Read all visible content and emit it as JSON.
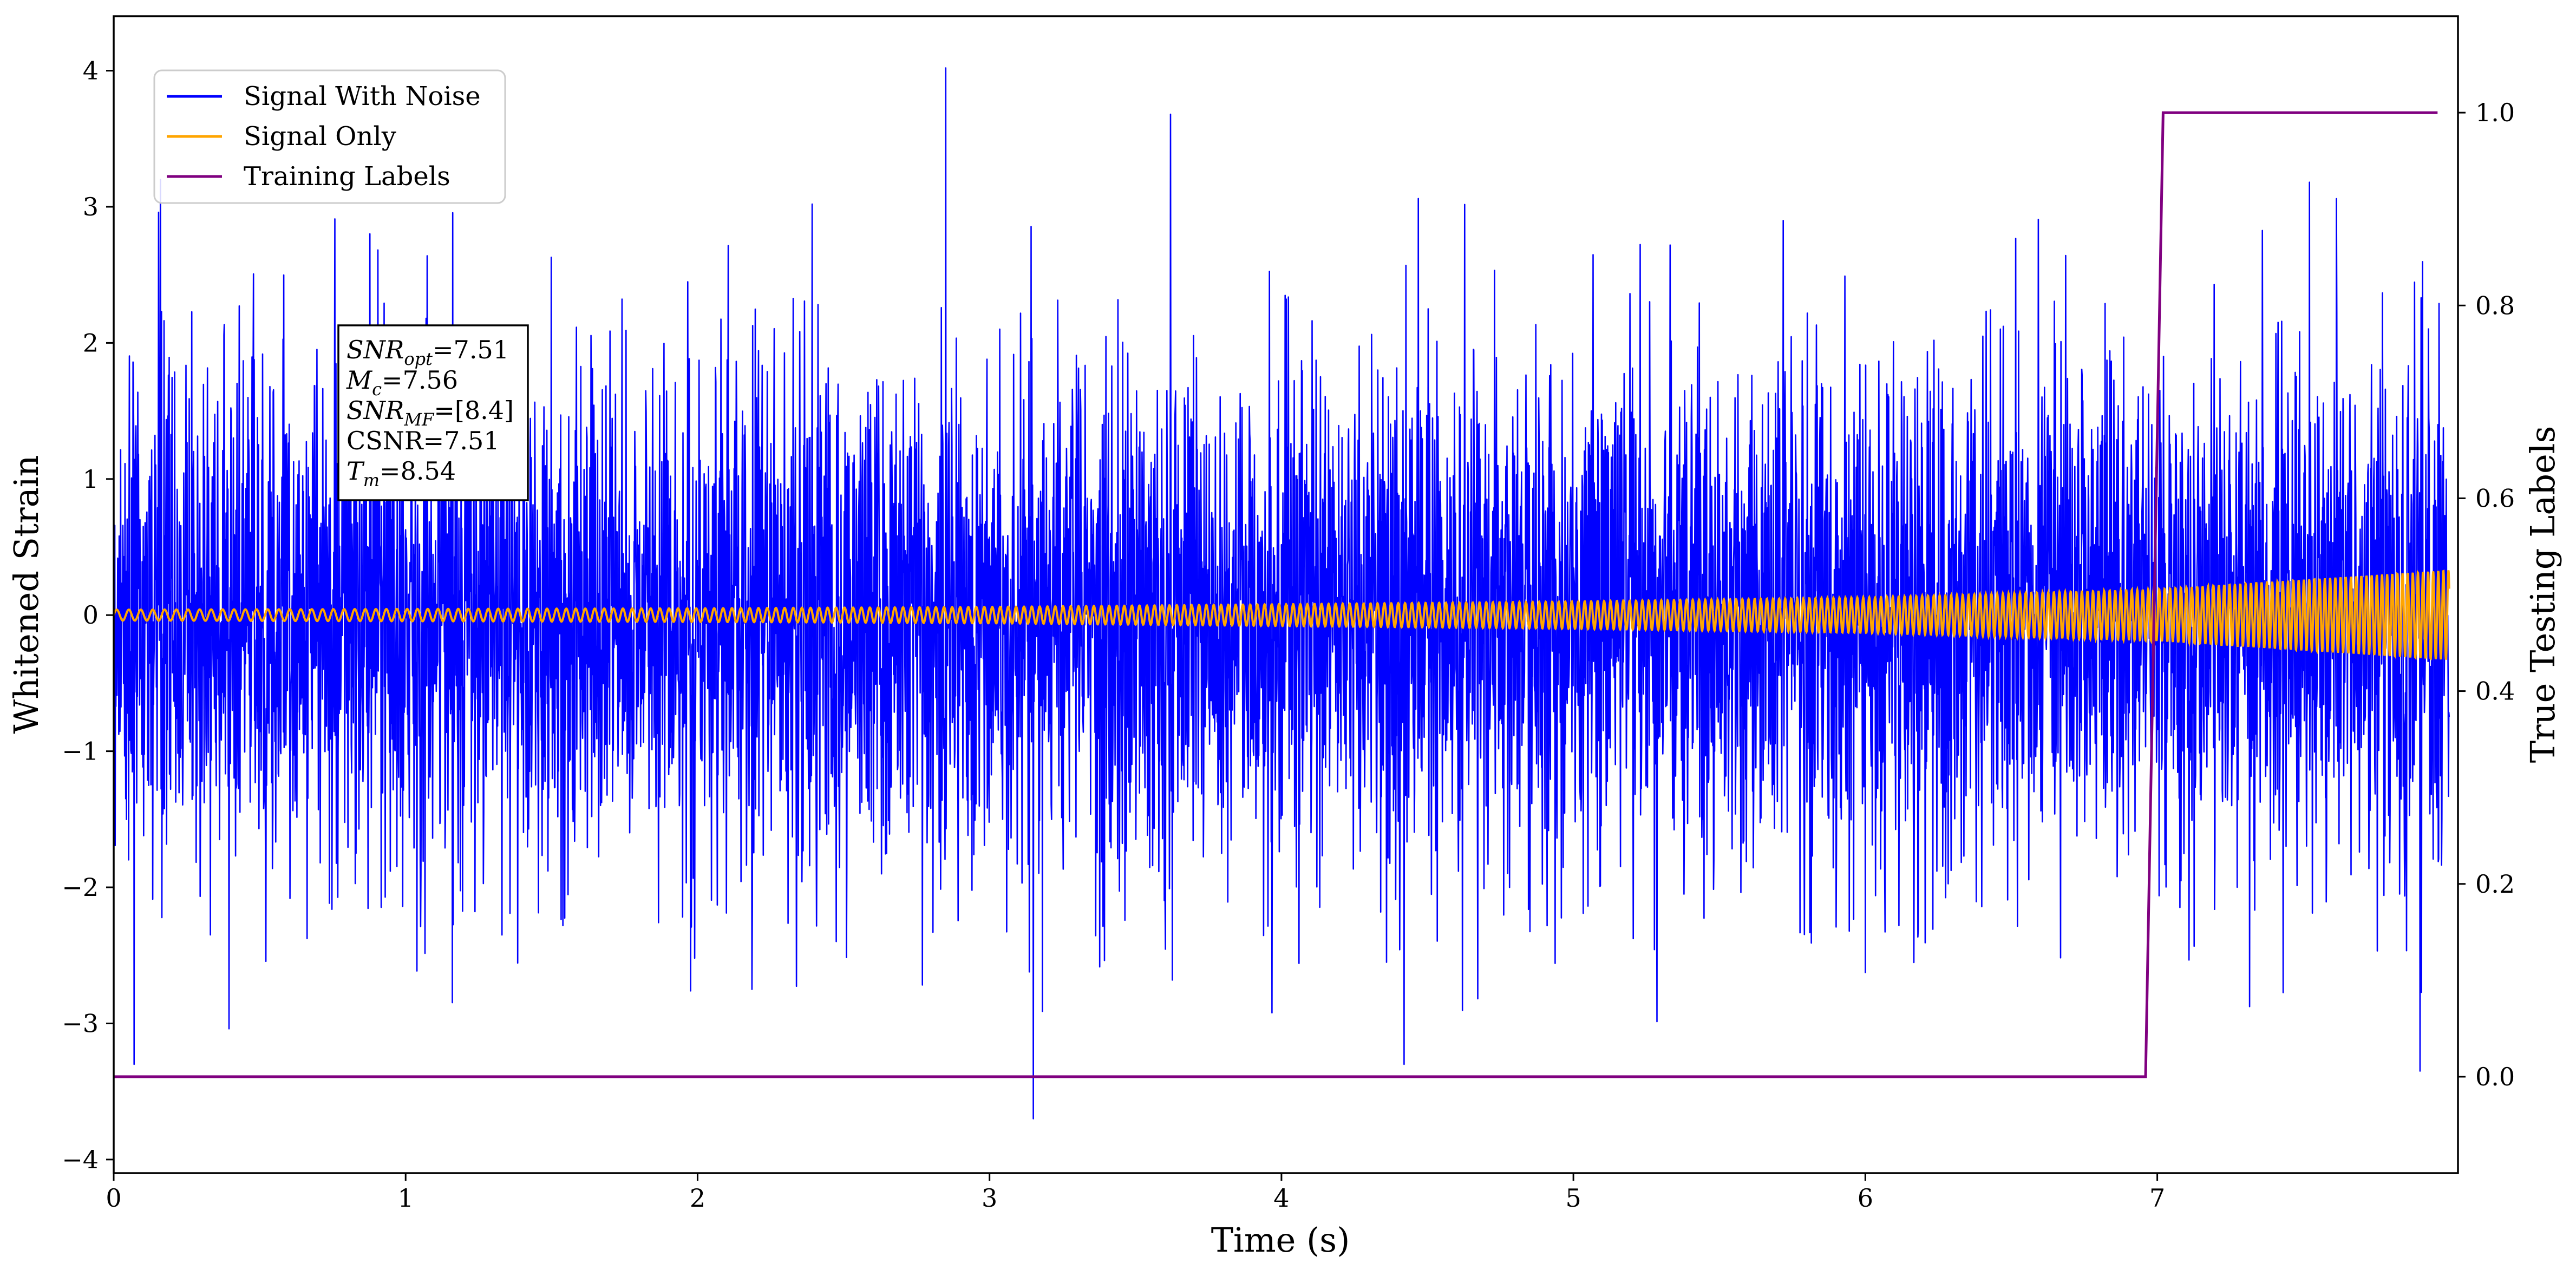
{
  "chart_data": {
    "type": "line",
    "xlabel": "Time (s)",
    "ylabel": "Whitened Strain",
    "ylabel_right": "True Testing Labels",
    "xlim": [
      0,
      8.03
    ],
    "ylim": [
      -4.1,
      4.4
    ],
    "ylim_right": [
      -0.1,
      1.1
    ],
    "x_ticks": [
      "0",
      "1",
      "2",
      "3",
      "4",
      "5",
      "6",
      "7"
    ],
    "y_ticks": [
      "−4",
      "−3",
      "−2",
      "−1",
      "0",
      "1",
      "2",
      "3",
      "4"
    ],
    "y_ticks_right": [
      "0.0",
      "0.2",
      "0.4",
      "0.6",
      "0.8",
      "1.0"
    ],
    "legend_position": "top-left",
    "legend": [
      "Signal With Noise",
      "Signal Only",
      "Training Labels"
    ],
    "annotation": {
      "snr_opt": "=7.51",
      "mc": "=7.56",
      "snr_mf": "=[8.4]",
      "csnr": "CSNR=7.51",
      "tm": "=8.54"
    },
    "series": [
      {
        "name": "Signal With Noise",
        "color": "#0000ff",
        "axis": "left",
        "description": "whitened noise, approx. standard deviation 1, peaks near 4.0 at t≈2.85 and minimum near −3.7 at t≈3.15",
        "notable_points": [
          [
            0.16,
            3.2
          ],
          [
            2.85,
            4.02
          ],
          [
            3.62,
            3.68
          ],
          [
            3.15,
            -3.7
          ],
          [
            0.07,
            -3.3
          ],
          [
            4.42,
            -3.3
          ],
          [
            7.9,
            -3.35
          ]
        ]
      },
      {
        "name": "Signal Only",
        "color": "#ffa500",
        "axis": "left",
        "description": "chirp whose amplitude grows from ~0.04 at t=0 to ~0.33 at t≈8",
        "envelope": {
          "x": [
            0,
            1,
            2,
            3,
            4,
            5,
            6,
            7,
            8
          ],
          "amplitude": [
            0.04,
            0.045,
            0.05,
            0.06,
            0.08,
            0.1,
            0.13,
            0.19,
            0.33
          ]
        }
      },
      {
        "name": "Training Labels",
        "color": "#800080",
        "axis": "right",
        "x": [
          0,
          6.96,
          7.02,
          7.96
        ],
        "y": [
          0,
          0,
          1,
          1
        ]
      }
    ]
  }
}
